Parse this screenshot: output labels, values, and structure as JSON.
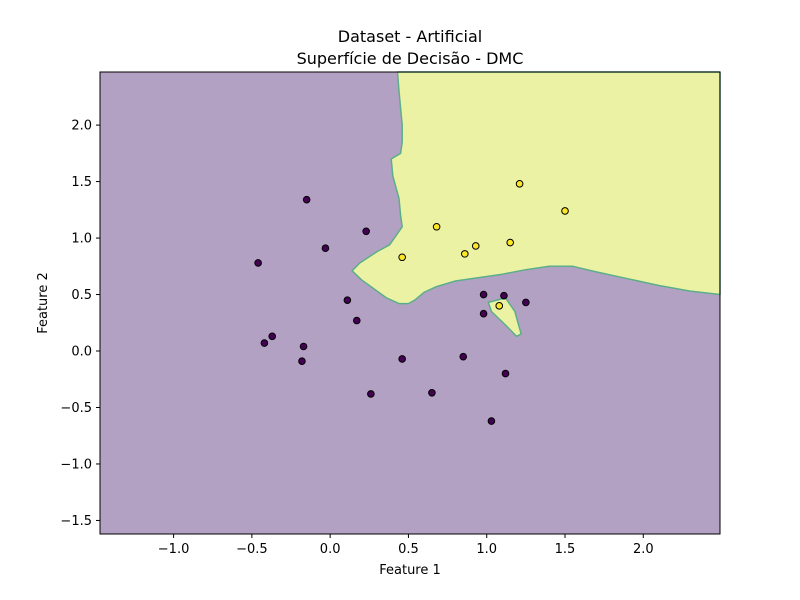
{
  "chart_data": {
    "type": "scatter",
    "title": "Dataset - Artificial",
    "subtitle": "Superfície de Decisão - DMC",
    "xlabel": "Feature 1",
    "ylabel": "Feature 2",
    "xlim": [
      -1.47,
      2.49
    ],
    "ylim": [
      -1.62,
      2.47
    ],
    "grid": false,
    "x_ticks": [
      {
        "value": -1.0,
        "label": "−1.0"
      },
      {
        "value": -0.5,
        "label": "−0.5"
      },
      {
        "value": 0.0,
        "label": "0.0"
      },
      {
        "value": 0.5,
        "label": "0.5"
      },
      {
        "value": 1.0,
        "label": "1.0"
      },
      {
        "value": 1.5,
        "label": "1.5"
      },
      {
        "value": 2.0,
        "label": "2.0"
      }
    ],
    "y_ticks": [
      {
        "value": -1.5,
        "label": "−1.5"
      },
      {
        "value": -1.0,
        "label": "−1.0"
      },
      {
        "value": -0.5,
        "label": "−0.5"
      },
      {
        "value": 0.0,
        "label": "0.0"
      },
      {
        "value": 0.5,
        "label": "0.5"
      },
      {
        "value": 1.0,
        "label": "1.0"
      },
      {
        "value": 1.5,
        "label": "1.5"
      },
      {
        "value": 2.0,
        "label": "2.0"
      }
    ],
    "colors": {
      "class0_region": "#b3a1c4",
      "class1_region": "#ebf2a3",
      "boundary": "#5cae8a",
      "class0_point": "#440154",
      "class1_point": "#fde725"
    },
    "decision_regions": {
      "class1_main": [
        [
          0.43,
          2.47
        ],
        [
          2.49,
          2.47
        ],
        [
          2.49,
          0.5
        ],
        [
          2.3,
          0.53
        ],
        [
          2.1,
          0.58
        ],
        [
          1.9,
          0.64
        ],
        [
          1.7,
          0.7
        ],
        [
          1.55,
          0.75
        ],
        [
          1.4,
          0.75
        ],
        [
          1.25,
          0.72
        ],
        [
          1.1,
          0.68
        ],
        [
          0.95,
          0.65
        ],
        [
          0.8,
          0.62
        ],
        [
          0.68,
          0.57
        ],
        [
          0.6,
          0.52
        ],
        [
          0.54,
          0.45
        ],
        [
          0.5,
          0.42
        ],
        [
          0.44,
          0.42
        ],
        [
          0.36,
          0.47
        ],
        [
          0.28,
          0.55
        ],
        [
          0.2,
          0.63
        ],
        [
          0.14,
          0.71
        ],
        [
          0.19,
          0.78
        ],
        [
          0.3,
          0.88
        ],
        [
          0.38,
          0.94
        ],
        [
          0.46,
          1.1
        ],
        [
          0.45,
          1.2
        ],
        [
          0.44,
          1.35
        ],
        [
          0.4,
          1.55
        ],
        [
          0.39,
          1.7
        ],
        [
          0.45,
          1.75
        ],
        [
          0.46,
          1.85
        ],
        [
          0.46,
          2.0
        ],
        [
          0.45,
          2.15
        ],
        [
          0.44,
          2.3
        ]
      ],
      "class1_island": [
        [
          1.01,
          0.43
        ],
        [
          1.12,
          0.47
        ],
        [
          1.18,
          0.35
        ],
        [
          1.2,
          0.25
        ],
        [
          1.22,
          0.15
        ],
        [
          1.19,
          0.13
        ],
        [
          1.12,
          0.23
        ],
        [
          1.03,
          0.35
        ]
      ]
    },
    "series": [
      {
        "class": 0,
        "points": [
          [
            -0.15,
            1.34
          ],
          [
            0.23,
            1.06
          ],
          [
            -0.03,
            0.91
          ],
          [
            -0.46,
            0.78
          ],
          [
            0.11,
            0.45
          ],
          [
            0.17,
            0.27
          ],
          [
            -0.37,
            0.13
          ],
          [
            -0.42,
            0.07
          ],
          [
            -0.17,
            0.04
          ],
          [
            -0.18,
            -0.09
          ],
          [
            0.46,
            -0.07
          ],
          [
            0.85,
            -0.05
          ],
          [
            0.26,
            -0.38
          ],
          [
            0.65,
            -0.37
          ],
          [
            1.12,
            -0.2
          ],
          [
            1.03,
            -0.62
          ],
          [
            0.98,
            0.5
          ],
          [
            1.11,
            0.49
          ],
          [
            1.25,
            0.43
          ],
          [
            0.98,
            0.33
          ]
        ]
      },
      {
        "class": 1,
        "points": [
          [
            1.21,
            1.48
          ],
          [
            1.5,
            1.24
          ],
          [
            0.68,
            1.1
          ],
          [
            1.15,
            0.96
          ],
          [
            0.93,
            0.93
          ],
          [
            0.86,
            0.86
          ],
          [
            0.46,
            0.83
          ],
          [
            1.08,
            0.4
          ]
        ]
      }
    ]
  }
}
